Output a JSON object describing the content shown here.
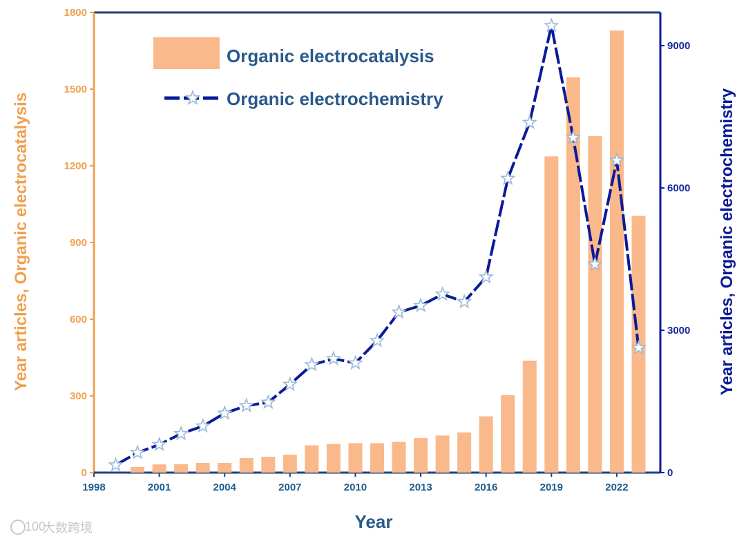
{
  "chart_data": {
    "type": "bar+line",
    "title": "",
    "xlabel": "Year",
    "ylabel_left": "Year articles, Organic electrocatalysis",
    "ylabel_right": "Year articles, Organic electrochemistry",
    "xlim": [
      1998,
      2024
    ],
    "ylim_left": [
      0,
      1800
    ],
    "ylim_right": [
      0,
      9700
    ],
    "x_ticks": [
      1998,
      2001,
      2004,
      2007,
      2010,
      2013,
      2016,
      2019,
      2022
    ],
    "y_ticks_left": [
      0,
      300,
      600,
      900,
      1200,
      1500,
      1800
    ],
    "y_ticks_right": [
      0,
      3000,
      6000,
      9000
    ],
    "legend_position": "top-left",
    "grid": false,
    "series": [
      {
        "name": "Organic electrocatalysis",
        "type": "bar",
        "axis": "left",
        "color": "#f9b98b",
        "years": [
          2000,
          2001,
          2002,
          2003,
          2004,
          2005,
          2006,
          2007,
          2008,
          2009,
          2010,
          2011,
          2012,
          2013,
          2014,
          2015,
          2016,
          2017,
          2018,
          2019,
          2020,
          2021,
          2022,
          2023
        ],
        "values": [
          22,
          32,
          33,
          38,
          38,
          57,
          62,
          70,
          107,
          112,
          115,
          115,
          120,
          135,
          145,
          157,
          220,
          303,
          438,
          1237,
          1546,
          1316,
          1729,
          1004
        ]
      },
      {
        "name": "Organic electrochemistry",
        "type": "line",
        "axis": "right",
        "color": "#0a1a9a",
        "marker": "star",
        "years": [
          1999,
          2000,
          2001,
          2002,
          2003,
          2004,
          2005,
          2006,
          2007,
          2008,
          2009,
          2010,
          2011,
          2012,
          2013,
          2014,
          2015,
          2016,
          2017,
          2018,
          2019,
          2020,
          2021,
          2022,
          2023
        ],
        "values": [
          160,
          420,
          590,
          820,
          980,
          1250,
          1410,
          1480,
          1860,
          2270,
          2400,
          2310,
          2780,
          3380,
          3520,
          3760,
          3600,
          4120,
          6200,
          7380,
          9420,
          7060,
          4390,
          6580,
          2630
        ]
      }
    ]
  },
  "watermark": {
    "text": "大数跨境",
    "logo_text": "100"
  }
}
